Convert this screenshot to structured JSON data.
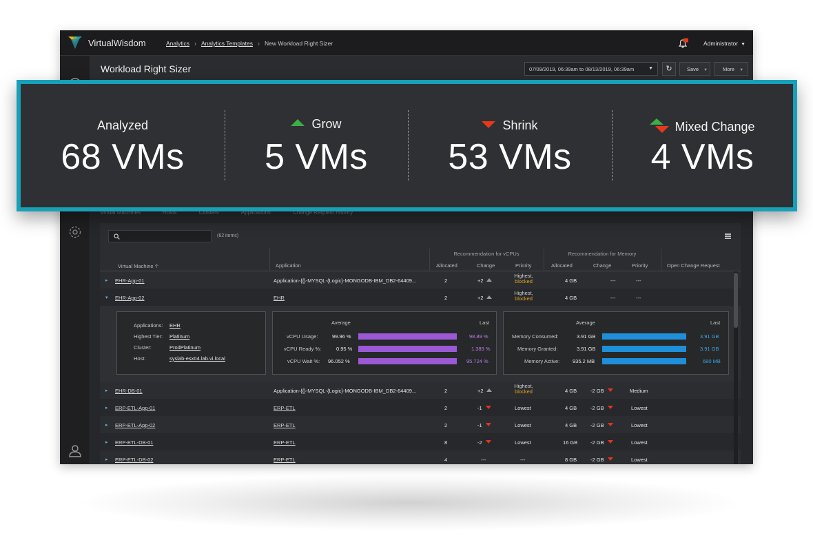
{
  "app": {
    "brand": "VirtualWisdom",
    "breadcrumbs": [
      "Analytics",
      "Analytics Templates",
      "New Workload Right Sizer"
    ],
    "user": "Administrator"
  },
  "header": {
    "title": "Workload Right Sizer",
    "date_range": "07/09/2019, 06:39am to 08/13/2019, 06:39am",
    "save_label": "Save",
    "more_label": "More"
  },
  "colors": {
    "accent": "#18a0b8",
    "grow": "#3cae43",
    "shrink": "#e8381c",
    "purple": "#9b59d6",
    "blue": "#1e8fd8"
  },
  "summary": [
    {
      "label": "Analyzed",
      "value": "68 VMs",
      "icon": "none"
    },
    {
      "label": "Grow",
      "value": "5 VMs",
      "icon": "grow-arrow-icon"
    },
    {
      "label": "Shrink",
      "value": "53 VMs",
      "icon": "shrink-arrow-icon"
    },
    {
      "label": "Mixed Change",
      "value": "4 VMs",
      "icon": "mixed-arrow-icon"
    }
  ],
  "tabs": [
    "Virtual Machines",
    "Hosts",
    "Clusters",
    "Applications",
    "Change Request History"
  ],
  "table": {
    "items_count": "(62 items)",
    "group_vcpu": "Recommendation for vCPUs",
    "group_mem": "Recommendation for Memory",
    "columns": {
      "vm": "Virtual Machine",
      "app": "Application",
      "cpu_alloc": "Allocated",
      "cpu_change": "Change",
      "cpu_priority": "Priority",
      "mem_alloc": "Allocated",
      "mem_change": "Change",
      "mem_priority": "Priority",
      "open_cr": "Open Change Request"
    },
    "rows": [
      {
        "vm": "EHR-App-01",
        "app": "Application-{{}-MYSQL-{Logic}-MONGODB-IBM_DB2-64409...",
        "cpu_alloc": "2",
        "cpu_change": "+2",
        "cpu_priority": "Highest,",
        "cpu_priority2": "blocked",
        "mem_alloc": "4 GB",
        "mem_change": "---",
        "mem_priority": "---"
      },
      {
        "vm": "EHR-App-02",
        "app": "EHR",
        "cpu_alloc": "2",
        "cpu_change": "+2",
        "cpu_priority": "Highest,",
        "cpu_priority2": "blocked",
        "mem_alloc": "4 GB",
        "mem_change": "---",
        "mem_priority": "---"
      },
      {
        "vm": "EHR-DB-01",
        "app": "Application-{{}-MYSQL-{Logic}-MONGODB-IBM_DB2-64409...",
        "cpu_alloc": "2",
        "cpu_change": "+2",
        "cpu_priority": "Highest,",
        "cpu_priority2": "blocked",
        "mem_alloc": "4 GB",
        "mem_change": "-2 GB",
        "mem_priority": "Medium"
      },
      {
        "vm": "ERP-ETL-App-01",
        "app": "ERP-ETL",
        "cpu_alloc": "2",
        "cpu_change": "-1",
        "cpu_priority": "Lowest",
        "mem_alloc": "4 GB",
        "mem_change": "-2 GB",
        "mem_priority": "Lowest"
      },
      {
        "vm": "ERP-ETL-App-02",
        "app": "ERP-ETL",
        "cpu_alloc": "2",
        "cpu_change": "-1",
        "cpu_priority": "Lowest",
        "mem_alloc": "4 GB",
        "mem_change": "-2 GB",
        "mem_priority": "Lowest"
      },
      {
        "vm": "ERP-ETL-DB-01",
        "app": "ERP-ETL",
        "cpu_alloc": "8",
        "cpu_change": "-2",
        "cpu_priority": "Lowest",
        "mem_alloc": "16 GB",
        "mem_change": "-2 GB",
        "mem_priority": "Lowest"
      },
      {
        "vm": "ERP-ETL-DB-02",
        "app": "ERP-ETL",
        "cpu_alloc": "4",
        "cpu_change": "---",
        "cpu_priority": "---",
        "mem_alloc": "8 GB",
        "mem_change": "-2 GB",
        "mem_priority": "Lowest"
      }
    ]
  },
  "detail": {
    "info": [
      {
        "label": "Applications:",
        "value": "EHR"
      },
      {
        "label": "Highest Tier:",
        "value": "Platinum"
      },
      {
        "label": "Cluster:",
        "value": "ProdPlatinum"
      },
      {
        "label": "Host:",
        "value": "syslab-esx04.lab.vi.local"
      }
    ],
    "avg_label": "Average",
    "last_label": "Last",
    "cpu": [
      {
        "label": "vCPU Usage:",
        "avg": "99.96 %",
        "last": "98.89 %",
        "fill": 1.0
      },
      {
        "label": "vCPU Ready %:",
        "avg": "0.95 %",
        "last": "1.389 %",
        "fill": 1.0
      },
      {
        "label": "vCPU Wait %:",
        "avg": "96.052 %",
        "last": "95.724 %",
        "fill": 1.0
      }
    ],
    "mem": [
      {
        "label": "Memory Consumed:",
        "avg": "3.91 GB",
        "last": "3.91 GB",
        "fill": 1.0
      },
      {
        "label": "Memory Granted:",
        "avg": "3.91 GB",
        "last": "3.91 GB",
        "fill": 1.0
      },
      {
        "label": "Memory Active:",
        "avg": "935.2 MB",
        "last": "680 MB",
        "fill": 1.0
      }
    ]
  }
}
